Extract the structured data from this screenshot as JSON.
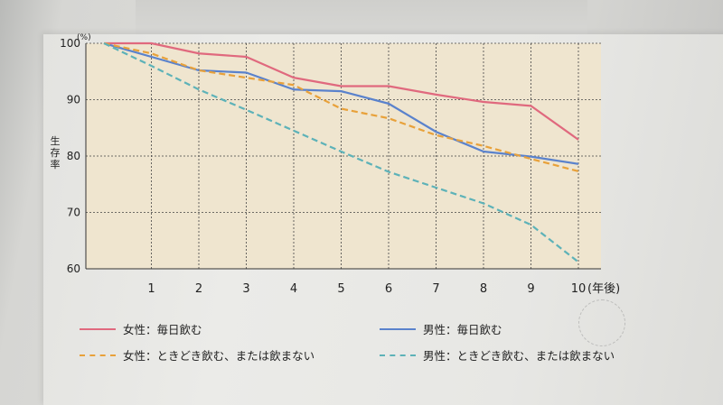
{
  "chart_data": {
    "type": "line",
    "x": [
      0,
      1,
      2,
      3,
      4,
      5,
      6,
      7,
      8,
      9,
      10
    ],
    "xticks": [
      "1",
      "2",
      "3",
      "4",
      "5",
      "6",
      "7",
      "8",
      "9",
      "10"
    ],
    "xunit": "(年後)",
    "yticks": [
      "60",
      "70",
      "80",
      "90",
      "100"
    ],
    "yunit": "(%)",
    "ylabel": "生存率",
    "ylim": [
      60,
      100
    ],
    "xlim": [
      0,
      10
    ],
    "grid": true,
    "series": [
      {
        "name": "女性：毎日飲む",
        "color": "#e0697e",
        "dash": "solid",
        "values": [
          100,
          100,
          98.2,
          97.6,
          93.9,
          92.4,
          92.4,
          90.9,
          89.6,
          88.9,
          82.9
        ]
      },
      {
        "name": "男性：毎日飲む",
        "color": "#5a82cc",
        "dash": "solid",
        "values": [
          100,
          97.6,
          95.2,
          94.8,
          91.8,
          91.5,
          89.3,
          84.3,
          80.8,
          79.9,
          78.6
        ]
      },
      {
        "name": "女性：ときどき飲む、または飲まない",
        "color": "#e8a13a",
        "dash": "dashed",
        "values": [
          100,
          98.2,
          95.2,
          93.9,
          92.6,
          88.4,
          86.7,
          83.7,
          81.8,
          79.5,
          77.3
        ]
      },
      {
        "name": "男性：ときどき飲む、または飲まない",
        "color": "#5db2b8",
        "dash": "dashed",
        "values": [
          100,
          96,
          91.8,
          88.2,
          84.5,
          80.8,
          77.2,
          74.4,
          71.6,
          67.8,
          61.2
        ]
      }
    ]
  },
  "legend": [
    {
      "label": "女性：毎日飲む",
      "color": "#e0697e",
      "dash": "solid"
    },
    {
      "label": "男性：毎日飲む",
      "color": "#5a82cc",
      "dash": "solid"
    },
    {
      "label": "女性：ときどき飲む、または飲まない",
      "color": "#e8a13a",
      "dash": "dashed"
    },
    {
      "label": "男性：ときどき飲む、または飲まない",
      "color": "#5db2b8",
      "dash": "dashed"
    }
  ],
  "colors": {
    "plot_bg": "#efe5cf",
    "grid": "#444444"
  }
}
